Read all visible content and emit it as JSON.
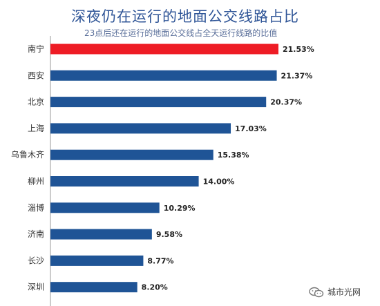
{
  "header": {
    "title": "深夜仍在运行的地面公交线路占比",
    "subtitle": "23点后还在运行的地面公交线占全天运行线路的比值"
  },
  "watermark": {
    "text": "城市光网",
    "icon": "wechat-icon"
  },
  "colors": {
    "highlight": "#ee1c25",
    "bar": "#1f5496",
    "axis": "#999999"
  },
  "chart_data": {
    "type": "bar",
    "orientation": "horizontal",
    "title": "深夜仍在运行的地面公交线路占比",
    "subtitle": "23点后还在运行的地面公交线占全天运行线路的比值",
    "categories": [
      "南宁",
      "西安",
      "北京",
      "上海",
      "乌鲁木齐",
      "柳州",
      "淄博",
      "济南",
      "长沙",
      "深圳"
    ],
    "values": [
      21.53,
      21.37,
      20.37,
      17.03,
      15.38,
      14.0,
      10.29,
      9.58,
      8.77,
      8.2
    ],
    "value_labels": [
      "21.53%",
      "21.37%",
      "20.37%",
      "17.03%",
      "15.38%",
      "14.00%",
      "10.29%",
      "9.58%",
      "8.77%",
      "8.20%"
    ],
    "highlight_index": 0,
    "xlim": [
      0,
      22
    ],
    "grid": false,
    "legend": "none"
  }
}
